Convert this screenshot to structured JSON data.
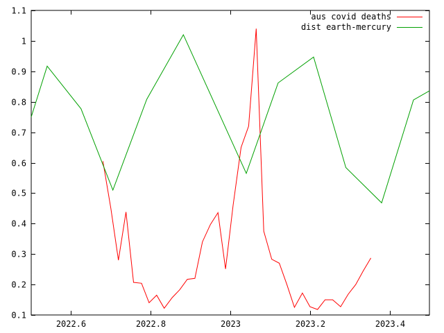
{
  "chart_data": {
    "type": "line",
    "title": "",
    "xlabel": "",
    "ylabel": "",
    "xlim": [
      2022.5,
      2023.5
    ],
    "ylim": [
      0.1,
      1.1
    ],
    "xticks": [
      2022.6,
      2022.8,
      2023.0,
      2023.2,
      2023.4
    ],
    "xtick_labels": [
      "2022.6",
      "2022.8",
      "2023",
      "2023.2",
      "2023.4"
    ],
    "yticks": [
      0.1,
      0.2,
      0.3,
      0.4,
      0.5,
      0.6,
      0.7,
      0.8,
      0.9,
      1.0,
      1.1
    ],
    "ytick_labels": [
      "0.1",
      "0.2",
      "0.3",
      "0.4",
      "0.5",
      "0.6",
      "0.7",
      "0.8",
      "0.9",
      "1",
      "1.1"
    ],
    "grid": false,
    "legend_position": "top-right",
    "series": [
      {
        "name": "aus covid deaths",
        "color": "#ff0000",
        "x": [
          2022.68,
          2022.7,
          2022.719,
          2022.738,
          2022.757,
          2022.777,
          2022.796,
          2022.815,
          2022.834,
          2022.854,
          2022.873,
          2022.892,
          2022.911,
          2022.93,
          2022.95,
          2022.969,
          2022.988,
          2023.007,
          2023.027,
          2023.046,
          2023.065,
          2023.084,
          2023.104,
          2023.123,
          2023.142,
          2023.161,
          2023.181,
          2023.2,
          2023.219,
          2023.238,
          2023.257,
          2023.277,
          2023.296,
          2023.315,
          2023.334,
          2023.353
        ],
        "y": [
          0.605,
          0.45,
          0.28,
          0.438,
          0.207,
          0.204,
          0.14,
          0.165,
          0.122,
          0.157,
          0.183,
          0.217,
          0.22,
          0.34,
          0.397,
          0.436,
          0.251,
          0.46,
          0.65,
          0.72,
          1.04,
          0.375,
          0.283,
          0.27,
          0.2,
          0.125,
          0.172,
          0.127,
          0.118,
          0.15,
          0.15,
          0.127,
          0.168,
          0.2,
          0.245,
          0.287
        ]
      },
      {
        "name": "dist earth-mercury",
        "color": "#00a000",
        "x": [
          2022.5,
          2022.54,
          2022.625,
          2022.705,
          2022.79,
          2022.882,
          2023.04,
          2023.12,
          2023.209,
          2023.29,
          2023.38,
          2023.46,
          2023.5
        ],
        "y": [
          0.75,
          0.917,
          0.777,
          0.51,
          0.808,
          1.02,
          0.565,
          0.862,
          0.947,
          0.584,
          0.468,
          0.806,
          0.836
        ]
      }
    ]
  }
}
